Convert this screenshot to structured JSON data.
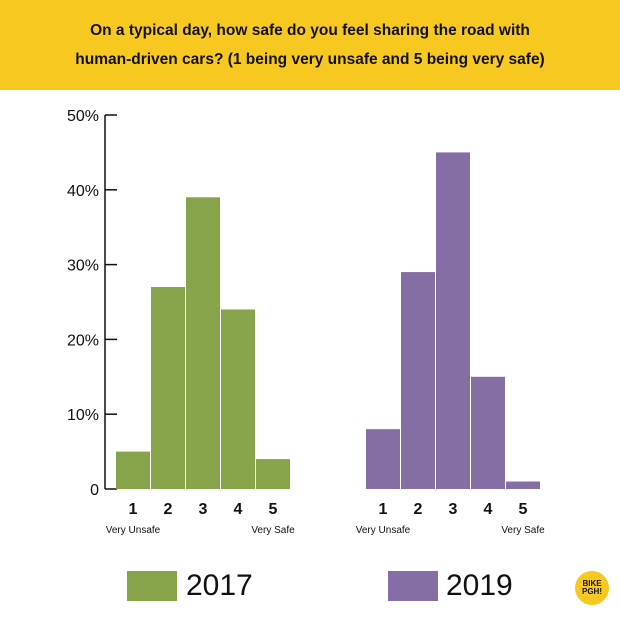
{
  "header": {
    "title_line1": "On a typical day, how safe do you feel sharing the road with",
    "title_line2": "human-driven cars? (1 being very unsafe and 5 being very safe)",
    "background_color": "#f7c820"
  },
  "chart_data": {
    "type": "bar",
    "title": "On a typical day, how safe do you feel sharing the road with human-driven cars? (1 being very unsafe and 5 being very safe)",
    "categories": [
      "1",
      "2",
      "3",
      "4",
      "5"
    ],
    "category_end_labels": {
      "low": "Very Unsafe",
      "high": "Very Safe"
    },
    "series": [
      {
        "name": "2017",
        "color": "#88a44a",
        "values": [
          5,
          27,
          39,
          24,
          4
        ]
      },
      {
        "name": "2019",
        "color": "#856ea3",
        "values": [
          8,
          29,
          45,
          15,
          1
        ]
      }
    ],
    "yticks": [
      "0",
      "10%",
      "20%",
      "30%",
      "40%",
      "50%"
    ],
    "ylim": [
      0,
      50
    ],
    "grid": false,
    "legend_position": "bottom"
  },
  "legend": [
    {
      "label": "2017",
      "color": "#88a44a"
    },
    {
      "label": "2019",
      "color": "#856ea3"
    }
  ],
  "logo": {
    "line1": "BIKE",
    "line2": "PGH!",
    "color": "#f7c820"
  }
}
